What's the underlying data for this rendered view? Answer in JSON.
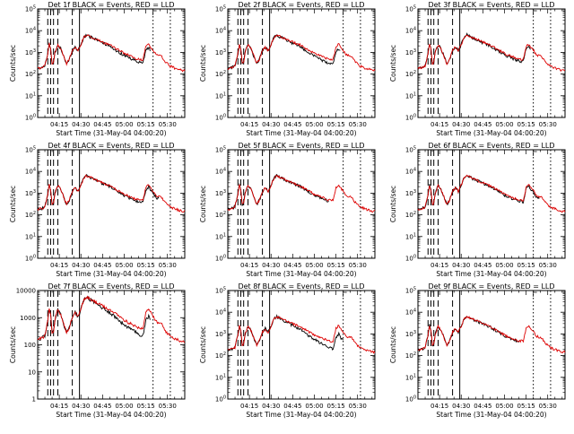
{
  "chart_data": {
    "type": "line",
    "x_axis_label": "Start Time (31-May-04 04:00:20)",
    "y_axis_label": "Counts/sec",
    "x_tick_labels": [
      "04:15",
      "04:30",
      "04:45",
      "05:00",
      "05:15",
      "05:30"
    ],
    "x_tick_minutes": [
      15,
      30,
      45,
      60,
      75,
      90
    ],
    "x_range_minutes": [
      0,
      102
    ],
    "y_scale": "log",
    "y_range": [
      1,
      100000
    ],
    "y_tick_values": [
      1,
      10,
      100,
      1000,
      10000,
      100000
    ],
    "legend_text": "BLACK = Events, RED = LLD",
    "series_colors": {
      "events": "#000000",
      "lld": "#dd0000"
    },
    "vertical_markers": {
      "dashed_minutes": [
        7,
        9,
        11,
        14,
        24
      ],
      "solid_minutes": [
        29
      ],
      "dotted_minutes": [
        80,
        92
      ]
    },
    "panels": [
      {
        "title": "Det 1f BLACK = Events, RED = LLD",
        "y_tick_labels": [
          "10^0",
          "10^1",
          "10^2",
          "10^3",
          "10^4",
          "10^5"
        ],
        "events_gap_from_minute": 78,
        "events_late_factor": 0.7
      },
      {
        "title": "Det 2f BLACK = Events, RED = LLD",
        "y_tick_labels": [
          "10^0",
          "10^1",
          "10^2",
          "10^3",
          "10^4",
          "10^5"
        ],
        "events_gap_from_minute": 78,
        "events_late_factor": 0.6
      },
      {
        "title": "Det 3f BLACK = Events, RED = LLD",
        "y_tick_labels": [
          "10^0",
          "10^1",
          "10^2",
          "10^3",
          "10^4",
          "10^5"
        ],
        "events_gap_from_minute": 78,
        "events_late_factor": 0.8
      },
      {
        "title": "Det 4f BLACK = Events, RED = LLD",
        "y_tick_labels": [
          "10^0",
          "10^1",
          "10^2",
          "10^3",
          "10^4",
          "10^5"
        ],
        "events_gap_from_minute": 84,
        "events_late_factor": 0.8
      },
      {
        "title": "Det 5f BLACK = Events, RED = LLD",
        "y_tick_labels": [
          "10^0",
          "10^1",
          "10^2",
          "10^3",
          "10^4",
          "10^5"
        ],
        "events_gap_from_minute": 70,
        "events_late_factor": 0.85
      },
      {
        "title": "Det 6f BLACK = Events, RED = LLD",
        "y_tick_labels": [
          "10^0",
          "10^1",
          "10^2",
          "10^3",
          "10^4",
          "10^5"
        ],
        "events_gap_from_minute": 84,
        "events_late_factor": 0.85
      },
      {
        "title": "Det 7f BLACK = Events, RED = LLD",
        "y_tick_labels": [
          "1",
          "10",
          "100",
          "1000",
          "10000"
        ],
        "y_range": [
          1,
          10000
        ],
        "events_gap_from_minute": 78,
        "events_late_factor": 0.5
      },
      {
        "title": "Det 8f BLACK = Events, RED = LLD",
        "y_tick_labels": [
          "10^0",
          "10^1",
          "10^2",
          "10^3",
          "10^4",
          "10^5"
        ],
        "events_gap_from_minute": 80,
        "events_late_factor": 0.4
      },
      {
        "title": "Det 9f BLACK = Events, RED = LLD",
        "y_tick_labels": [
          "10^0",
          "10^1",
          "10^2",
          "10^3",
          "10^4",
          "10^5"
        ],
        "events_gap_from_minute": 70,
        "events_late_factor": 0.9
      }
    ],
    "lld_profile": [
      [
        0,
        180
      ],
      [
        3,
        200
      ],
      [
        5,
        240
      ],
      [
        7,
        900
      ],
      [
        8,
        2500
      ],
      [
        9,
        1400
      ],
      [
        10,
        300
      ],
      [
        11,
        350
      ],
      [
        12,
        1000
      ],
      [
        14,
        2200
      ],
      [
        16,
        1500
      ],
      [
        18,
        700
      ],
      [
        20,
        300
      ],
      [
        22,
        500
      ],
      [
        24,
        1200
      ],
      [
        26,
        1800
      ],
      [
        28,
        1200
      ],
      [
        30,
        2300
      ],
      [
        32,
        5000
      ],
      [
        34,
        6500
      ],
      [
        36,
        5500
      ],
      [
        40,
        4200
      ],
      [
        45,
        3000
      ],
      [
        50,
        2200
      ],
      [
        55,
        1400
      ],
      [
        60,
        900
      ],
      [
        65,
        650
      ],
      [
        70,
        480
      ],
      [
        73,
        470
      ],
      [
        75,
        1800
      ],
      [
        77,
        2500
      ],
      [
        78,
        1800
      ],
      [
        80,
        1300
      ],
      [
        82,
        800
      ],
      [
        84,
        700
      ],
      [
        86,
        650
      ],
      [
        88,
        400
      ],
      [
        90,
        300
      ],
      [
        92,
        230
      ],
      [
        96,
        180
      ],
      [
        100,
        150
      ]
    ]
  }
}
